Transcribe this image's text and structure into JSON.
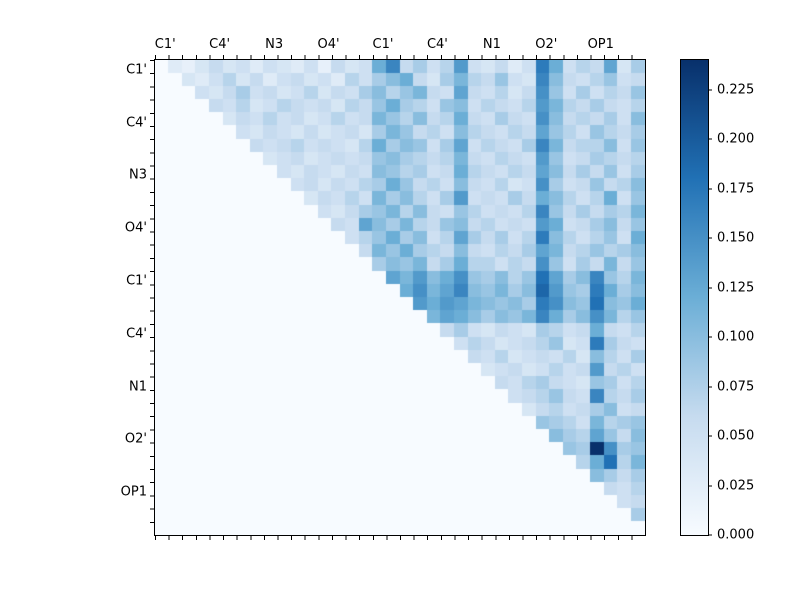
{
  "figure": {
    "background": "#ffffff"
  },
  "axes": {
    "x_tick_labels": [
      "C1'",
      "C4'",
      "N3",
      "O4'",
      "C1'",
      "C4'",
      "N1",
      "O2'",
      "OP1"
    ],
    "y_tick_labels": [
      "C1'",
      "C4'",
      "N3",
      "O4'",
      "C1'",
      "C4'",
      "N1",
      "O2'",
      "OP1"
    ]
  },
  "colorbar": {
    "ticks": [
      {
        "value": 0.225,
        "label": "0.225"
      },
      {
        "value": 0.2,
        "label": "0.200"
      },
      {
        "value": 0.175,
        "label": "0.175"
      },
      {
        "value": 0.15,
        "label": "0.150"
      },
      {
        "value": 0.125,
        "label": "0.125"
      },
      {
        "value": 0.1,
        "label": "0.100"
      },
      {
        "value": 0.075,
        "label": "0.075"
      },
      {
        "value": 0.05,
        "label": "0.050"
      },
      {
        "value": 0.025,
        "label": "0.025"
      },
      {
        "value": 0.0,
        "label": "0.000"
      }
    ]
  },
  "chart_data": {
    "type": "heatmap",
    "title": "",
    "xlabel": "",
    "ylabel": "",
    "x_labels": [
      "C1'",
      "C4'",
      "N3",
      "O4'",
      "C1'",
      "C4'",
      "N1",
      "O2'",
      "OP1"
    ],
    "y_labels": [
      "C1'",
      "C4'",
      "N3",
      "O4'",
      "C1'",
      "C4'",
      "N1",
      "O2'",
      "OP1"
    ],
    "group_size": 4,
    "n": 36,
    "vmin": 0,
    "vmax": 0.24,
    "colormap": "Blues",
    "colormap_stops": [
      [
        0,
        "#f7fbff"
      ],
      [
        0.25,
        "#c6dbef"
      ],
      [
        0.5,
        "#6baed6"
      ],
      [
        0.75,
        "#2171b5"
      ],
      [
        1,
        "#08306b"
      ]
    ],
    "triangular": "upper",
    "matrix": [
      [
        0,
        0.03,
        0.02,
        0.04,
        0.06,
        0.04,
        0.05,
        0.03,
        0.05,
        0.04,
        0.03,
        0.05,
        0.02,
        0.06,
        0.04,
        0.05,
        0.12,
        0.16,
        0.06,
        0.08,
        0.05,
        0.07,
        0.14,
        0.05,
        0.04,
        0.06,
        0.03,
        0.05,
        0.17,
        0.12,
        0.05,
        0.07,
        0.06,
        0.13,
        0.04,
        0.08
      ],
      [
        0,
        0,
        0.04,
        0.03,
        0.05,
        0.07,
        0.04,
        0.06,
        0.03,
        0.05,
        0.06,
        0.04,
        0.05,
        0.03,
        0.07,
        0.05,
        0.08,
        0.1,
        0.12,
        0.06,
        0.04,
        0.08,
        0.11,
        0.07,
        0.06,
        0.09,
        0.05,
        0.04,
        0.16,
        0.1,
        0.06,
        0.05,
        0.07,
        0.09,
        0.05,
        0.06
      ],
      [
        0,
        0,
        0,
        0.05,
        0.04,
        0.06,
        0.08,
        0.05,
        0.06,
        0.04,
        0.05,
        0.07,
        0.04,
        0.06,
        0.05,
        0.08,
        0.1,
        0.07,
        0.09,
        0.11,
        0.06,
        0.05,
        0.13,
        0.06,
        0.05,
        0.07,
        0.04,
        0.06,
        0.15,
        0.09,
        0.05,
        0.08,
        0.05,
        0.07,
        0.06,
        0.09
      ],
      [
        0,
        0,
        0,
        0,
        0.06,
        0.05,
        0.07,
        0.04,
        0.05,
        0.07,
        0.06,
        0.05,
        0.06,
        0.04,
        0.07,
        0.06,
        0.09,
        0.12,
        0.08,
        0.07,
        0.05,
        0.09,
        0.1,
        0.05,
        0.07,
        0.06,
        0.05,
        0.07,
        0.14,
        0.11,
        0.07,
        0.06,
        0.08,
        0.06,
        0.05,
        0.07
      ],
      [
        0,
        0,
        0,
        0,
        0,
        0.04,
        0.06,
        0.05,
        0.07,
        0.05,
        0.06,
        0.04,
        0.05,
        0.07,
        0.05,
        0.06,
        0.11,
        0.09,
        0.07,
        0.1,
        0.06,
        0.07,
        0.12,
        0.06,
        0.05,
        0.08,
        0.06,
        0.05,
        0.15,
        0.1,
        0.06,
        0.07,
        0.06,
        0.08,
        0.05,
        0.1
      ],
      [
        0,
        0,
        0,
        0,
        0,
        0,
        0.05,
        0.04,
        0.06,
        0.05,
        0.04,
        0.06,
        0.04,
        0.05,
        0.06,
        0.04,
        0.08,
        0.11,
        0.09,
        0.06,
        0.07,
        0.05,
        0.1,
        0.07,
        0.06,
        0.05,
        0.07,
        0.06,
        0.13,
        0.09,
        0.07,
        0.05,
        0.09,
        0.07,
        0.06,
        0.08
      ],
      [
        0,
        0,
        0,
        0,
        0,
        0,
        0,
        0.06,
        0.05,
        0.06,
        0.07,
        0.05,
        0.06,
        0.05,
        0.04,
        0.07,
        0.12,
        0.08,
        0.1,
        0.09,
        0.05,
        0.08,
        0.13,
        0.05,
        0.07,
        0.06,
        0.05,
        0.08,
        0.16,
        0.11,
        0.06,
        0.07,
        0.07,
        0.1,
        0.05,
        0.09
      ],
      [
        0,
        0,
        0,
        0,
        0,
        0,
        0,
        0,
        0.04,
        0.05,
        0.06,
        0.04,
        0.05,
        0.06,
        0.05,
        0.06,
        0.09,
        0.1,
        0.08,
        0.07,
        0.06,
        0.07,
        0.11,
        0.06,
        0.05,
        0.07,
        0.06,
        0.05,
        0.14,
        0.09,
        0.05,
        0.06,
        0.08,
        0.07,
        0.06,
        0.07
      ],
      [
        0,
        0,
        0,
        0,
        0,
        0,
        0,
        0,
        0,
        0.05,
        0.04,
        0.06,
        0.05,
        0.04,
        0.06,
        0.05,
        0.1,
        0.09,
        0.07,
        0.08,
        0.05,
        0.06,
        0.12,
        0.07,
        0.06,
        0.05,
        0.07,
        0.06,
        0.13,
        0.1,
        0.06,
        0.08,
        0.06,
        0.09,
        0.05,
        0.08
      ],
      [
        0,
        0,
        0,
        0,
        0,
        0,
        0,
        0,
        0,
        0,
        0.05,
        0.06,
        0.04,
        0.06,
        0.05,
        0.07,
        0.08,
        0.12,
        0.09,
        0.06,
        0.07,
        0.05,
        0.1,
        0.06,
        0.05,
        0.07,
        0.04,
        0.05,
        0.15,
        0.08,
        0.05,
        0.06,
        0.09,
        0.06,
        0.07,
        0.1
      ],
      [
        0,
        0,
        0,
        0,
        0,
        0,
        0,
        0,
        0,
        0,
        0,
        0.04,
        0.06,
        0.05,
        0.07,
        0.05,
        0.11,
        0.08,
        0.1,
        0.07,
        0.05,
        0.08,
        0.14,
        0.05,
        0.06,
        0.05,
        0.08,
        0.06,
        0.12,
        0.1,
        0.07,
        0.05,
        0.07,
        0.12,
        0.05,
        0.09
      ],
      [
        0,
        0,
        0,
        0,
        0,
        0,
        0,
        0,
        0,
        0,
        0,
        0,
        0.05,
        0.04,
        0.06,
        0.08,
        0.09,
        0.11,
        0.07,
        0.1,
        0.06,
        0.05,
        0.09,
        0.07,
        0.05,
        0.06,
        0.05,
        0.07,
        0.16,
        0.09,
        0.06,
        0.08,
        0.06,
        0.08,
        0.07,
        0.11
      ],
      [
        0,
        0,
        0,
        0,
        0,
        0,
        0,
        0,
        0,
        0,
        0,
        0,
        0,
        0.06,
        0.05,
        0.13,
        0.1,
        0.08,
        0.11,
        0.07,
        0.06,
        0.09,
        0.1,
        0.06,
        0.07,
        0.05,
        0.06,
        0.05,
        0.14,
        0.12,
        0.05,
        0.06,
        0.08,
        0.1,
        0.06,
        0.09
      ],
      [
        0,
        0,
        0,
        0,
        0,
        0,
        0,
        0,
        0,
        0,
        0,
        0,
        0,
        0,
        0.05,
        0.07,
        0.09,
        0.12,
        0.08,
        0.1,
        0.05,
        0.07,
        0.13,
        0.08,
        0.06,
        0.08,
        0.05,
        0.07,
        0.17,
        0.1,
        0.07,
        0.05,
        0.07,
        0.09,
        0.05,
        0.12
      ],
      [
        0,
        0,
        0,
        0,
        0,
        0,
        0,
        0,
        0,
        0,
        0,
        0,
        0,
        0,
        0,
        0.06,
        0.11,
        0.09,
        0.12,
        0.08,
        0.07,
        0.06,
        0.1,
        0.06,
        0.05,
        0.07,
        0.06,
        0.08,
        0.13,
        0.11,
        0.06,
        0.07,
        0.09,
        0.07,
        0.08,
        0.1
      ],
      [
        0,
        0,
        0,
        0,
        0,
        0,
        0,
        0,
        0,
        0,
        0,
        0,
        0,
        0,
        0,
        0,
        0.08,
        0.1,
        0.09,
        0.11,
        0.06,
        0.08,
        0.12,
        0.07,
        0.07,
        0.05,
        0.07,
        0.06,
        0.15,
        0.09,
        0.05,
        0.08,
        0.06,
        0.11,
        0.06,
        0.09
      ],
      [
        0,
        0,
        0,
        0,
        0,
        0,
        0,
        0,
        0,
        0,
        0,
        0,
        0,
        0,
        0,
        0,
        0,
        0.13,
        0.11,
        0.14,
        0.1,
        0.12,
        0.15,
        0.09,
        0.08,
        0.1,
        0.07,
        0.09,
        0.18,
        0.13,
        0.08,
        0.1,
        0.16,
        0.09,
        0.07,
        0.11
      ],
      [
        0,
        0,
        0,
        0,
        0,
        0,
        0,
        0,
        0,
        0,
        0,
        0,
        0,
        0,
        0,
        0,
        0,
        0,
        0.12,
        0.15,
        0.11,
        0.13,
        0.16,
        0.1,
        0.09,
        0.11,
        0.08,
        0.1,
        0.19,
        0.14,
        0.09,
        0.08,
        0.17,
        0.12,
        0.08,
        0.1
      ],
      [
        0,
        0,
        0,
        0,
        0,
        0,
        0,
        0,
        0,
        0,
        0,
        0,
        0,
        0,
        0,
        0,
        0,
        0,
        0,
        0.14,
        0.12,
        0.14,
        0.13,
        0.11,
        0.1,
        0.09,
        0.1,
        0.08,
        0.17,
        0.15,
        0.1,
        0.09,
        0.18,
        0.1,
        0.09,
        0.12
      ],
      [
        0,
        0,
        0,
        0,
        0,
        0,
        0,
        0,
        0,
        0,
        0,
        0,
        0,
        0,
        0,
        0,
        0,
        0,
        0,
        0,
        0.11,
        0.13,
        0.12,
        0.1,
        0.08,
        0.1,
        0.09,
        0.11,
        0.16,
        0.12,
        0.08,
        0.1,
        0.15,
        0.11,
        0.07,
        0.09
      ],
      [
        0,
        0,
        0,
        0,
        0,
        0,
        0,
        0,
        0,
        0,
        0,
        0,
        0,
        0,
        0,
        0,
        0,
        0,
        0,
        0,
        0,
        0.06,
        0.08,
        0.05,
        0.04,
        0.06,
        0.05,
        0.04,
        0.08,
        0.07,
        0.05,
        0.06,
        0.12,
        0.06,
        0.05,
        0.07
      ],
      [
        0,
        0,
        0,
        0,
        0,
        0,
        0,
        0,
        0,
        0,
        0,
        0,
        0,
        0,
        0,
        0,
        0,
        0,
        0,
        0,
        0,
        0,
        0.05,
        0.07,
        0.06,
        0.04,
        0.05,
        0.06,
        0.07,
        0.09,
        0.04,
        0.05,
        0.17,
        0.08,
        0.06,
        0.05
      ],
      [
        0,
        0,
        0,
        0,
        0,
        0,
        0,
        0,
        0,
        0,
        0,
        0,
        0,
        0,
        0,
        0,
        0,
        0,
        0,
        0,
        0,
        0,
        0,
        0.06,
        0.05,
        0.07,
        0.04,
        0.05,
        0.06,
        0.05,
        0.07,
        0.04,
        0.1,
        0.07,
        0.05,
        0.08
      ],
      [
        0,
        0,
        0,
        0,
        0,
        0,
        0,
        0,
        0,
        0,
        0,
        0,
        0,
        0,
        0,
        0,
        0,
        0,
        0,
        0,
        0,
        0,
        0,
        0,
        0.04,
        0.05,
        0.06,
        0.04,
        0.05,
        0.07,
        0.05,
        0.06,
        0.14,
        0.06,
        0.07,
        0.05
      ],
      [
        0,
        0,
        0,
        0,
        0,
        0,
        0,
        0,
        0,
        0,
        0,
        0,
        0,
        0,
        0,
        0,
        0,
        0,
        0,
        0,
        0,
        0,
        0,
        0,
        0,
        0.06,
        0.05,
        0.07,
        0.08,
        0.06,
        0.05,
        0.04,
        0.09,
        0.08,
        0.05,
        0.07
      ],
      [
        0,
        0,
        0,
        0,
        0,
        0,
        0,
        0,
        0,
        0,
        0,
        0,
        0,
        0,
        0,
        0,
        0,
        0,
        0,
        0,
        0,
        0,
        0,
        0,
        0,
        0,
        0.05,
        0.06,
        0.07,
        0.09,
        0.06,
        0.05,
        0.16,
        0.07,
        0.06,
        0.08
      ],
      [
        0,
        0,
        0,
        0,
        0,
        0,
        0,
        0,
        0,
        0,
        0,
        0,
        0,
        0,
        0,
        0,
        0,
        0,
        0,
        0,
        0,
        0,
        0,
        0,
        0,
        0,
        0,
        0.04,
        0.06,
        0.07,
        0.05,
        0.06,
        0.08,
        0.1,
        0.05,
        0.06
      ],
      [
        0,
        0,
        0,
        0,
        0,
        0,
        0,
        0,
        0,
        0,
        0,
        0,
        0,
        0,
        0,
        0,
        0,
        0,
        0,
        0,
        0,
        0,
        0,
        0,
        0,
        0,
        0,
        0,
        0.09,
        0.08,
        0.07,
        0.05,
        0.11,
        0.07,
        0.08,
        0.09
      ],
      [
        0,
        0,
        0,
        0,
        0,
        0,
        0,
        0,
        0,
        0,
        0,
        0,
        0,
        0,
        0,
        0,
        0,
        0,
        0,
        0,
        0,
        0,
        0,
        0,
        0,
        0,
        0,
        0,
        0,
        0.1,
        0.08,
        0.07,
        0.13,
        0.09,
        0.06,
        0.1
      ],
      [
        0,
        0,
        0,
        0,
        0,
        0,
        0,
        0,
        0,
        0,
        0,
        0,
        0,
        0,
        0,
        0,
        0,
        0,
        0,
        0,
        0,
        0,
        0,
        0,
        0,
        0,
        0,
        0,
        0,
        0,
        0.09,
        0.08,
        0.24,
        0.15,
        0.08,
        0.09
      ],
      [
        0,
        0,
        0,
        0,
        0,
        0,
        0,
        0,
        0,
        0,
        0,
        0,
        0,
        0,
        0,
        0,
        0,
        0,
        0,
        0,
        0,
        0,
        0,
        0,
        0,
        0,
        0,
        0,
        0,
        0,
        0,
        0.07,
        0.12,
        0.18,
        0.07,
        0.11
      ],
      [
        0,
        0,
        0,
        0,
        0,
        0,
        0,
        0,
        0,
        0,
        0,
        0,
        0,
        0,
        0,
        0,
        0,
        0,
        0,
        0,
        0,
        0,
        0,
        0,
        0,
        0,
        0,
        0,
        0,
        0,
        0,
        0,
        0.1,
        0.08,
        0.06,
        0.08
      ],
      [
        0,
        0,
        0,
        0,
        0,
        0,
        0,
        0,
        0,
        0,
        0,
        0,
        0,
        0,
        0,
        0,
        0,
        0,
        0,
        0,
        0,
        0,
        0,
        0,
        0,
        0,
        0,
        0,
        0,
        0,
        0,
        0,
        0,
        0.06,
        0.05,
        0.07
      ],
      [
        0,
        0,
        0,
        0,
        0,
        0,
        0,
        0,
        0,
        0,
        0,
        0,
        0,
        0,
        0,
        0,
        0,
        0,
        0,
        0,
        0,
        0,
        0,
        0,
        0,
        0,
        0,
        0,
        0,
        0,
        0,
        0,
        0,
        0,
        0.05,
        0.06
      ],
      [
        0,
        0,
        0,
        0,
        0,
        0,
        0,
        0,
        0,
        0,
        0,
        0,
        0,
        0,
        0,
        0,
        0,
        0,
        0,
        0,
        0,
        0,
        0,
        0,
        0,
        0,
        0,
        0,
        0,
        0,
        0,
        0,
        0,
        0,
        0,
        0.08
      ],
      [
        0,
        0,
        0,
        0,
        0,
        0,
        0,
        0,
        0,
        0,
        0,
        0,
        0,
        0,
        0,
        0,
        0,
        0,
        0,
        0,
        0,
        0,
        0,
        0,
        0,
        0,
        0,
        0,
        0,
        0,
        0,
        0,
        0,
        0,
        0,
        0
      ]
    ]
  }
}
